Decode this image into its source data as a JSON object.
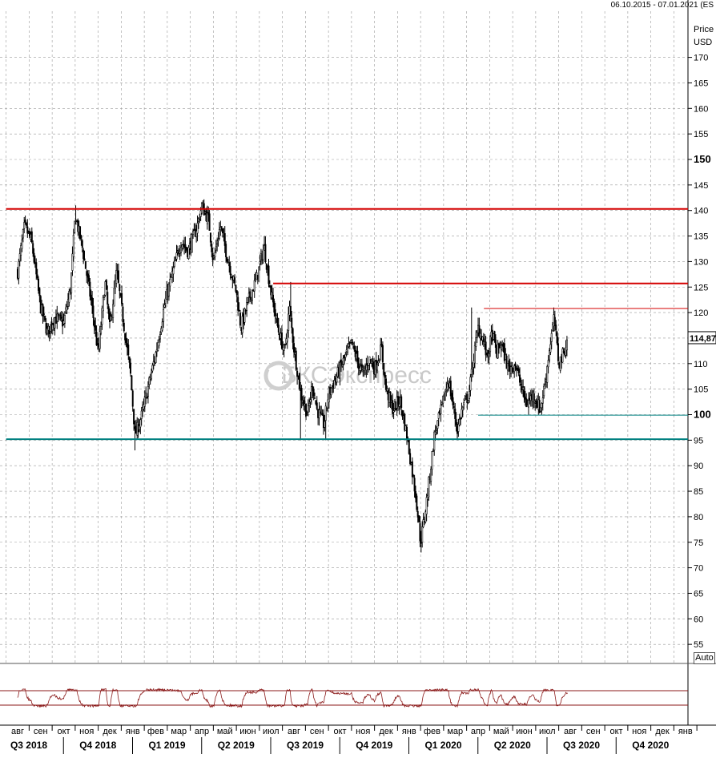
{
  "header": {
    "date_range": "06.10.2015 - 07.01.2021 (ES"
  },
  "axis": {
    "price_label": "Price",
    "currency_label": "USD"
  },
  "watermark": "БКСЭкспресс",
  "controls": {
    "auto_label": "Auto"
  },
  "colors": {
    "resistance": "#d40000",
    "support": "#008080",
    "candle": "#000000",
    "oscillator": "#8b1a1a",
    "grid": "#999999"
  },
  "chart_data": {
    "type": "candlestick",
    "ylim": [
      51,
      180
    ],
    "y_ticks": [
      55,
      60,
      65,
      70,
      75,
      80,
      85,
      90,
      95,
      100,
      105,
      110,
      115,
      120,
      125,
      130,
      135,
      140,
      145,
      150,
      155,
      160,
      165,
      170
    ],
    "bold_ticks": [
      100,
      150
    ],
    "last_price": "114,87",
    "months": [
      "авг",
      "сен",
      "окт",
      "ноя",
      "дек",
      "янв",
      "фев",
      "мар",
      "апр",
      "май",
      "июн",
      "июл",
      "авг",
      "сен",
      "окт",
      "ноя",
      "дек",
      "янв",
      "фев",
      "мар",
      "апр",
      "май",
      "июн",
      "июл",
      "авг",
      "сен",
      "окт",
      "ноя",
      "дек",
      "янв"
    ],
    "quarters": [
      "Q3 2018",
      "Q4 2018",
      "Q1 2019",
      "Q2 2019",
      "Q3 2019",
      "Q4 2019",
      "Q1 2020",
      "Q2 2020",
      "Q3 2020",
      "Q4 2020"
    ],
    "close_path": [
      {
        "t": 0.0,
        "v": 128
      },
      {
        "t": 0.3,
        "v": 137
      },
      {
        "t": 0.6,
        "v": 134
      },
      {
        "t": 1.0,
        "v": 121
      },
      {
        "t": 1.3,
        "v": 116
      },
      {
        "t": 1.6,
        "v": 119
      },
      {
        "t": 2.0,
        "v": 118
      },
      {
        "t": 2.3,
        "v": 125
      },
      {
        "t": 2.5,
        "v": 139
      },
      {
        "t": 2.8,
        "v": 133
      },
      {
        "t": 3.2,
        "v": 122
      },
      {
        "t": 3.5,
        "v": 112
      },
      {
        "t": 3.8,
        "v": 126
      },
      {
        "t": 4.0,
        "v": 117
      },
      {
        "t": 4.3,
        "v": 128
      },
      {
        "t": 4.6,
        "v": 118
      },
      {
        "t": 4.9,
        "v": 108
      },
      {
        "t": 5.1,
        "v": 96
      },
      {
        "t": 5.4,
        "v": 100
      },
      {
        "t": 5.7,
        "v": 106
      },
      {
        "t": 6.0,
        "v": 112
      },
      {
        "t": 6.4,
        "v": 122
      },
      {
        "t": 6.8,
        "v": 129
      },
      {
        "t": 7.1,
        "v": 134
      },
      {
        "t": 7.4,
        "v": 132
      },
      {
        "t": 7.8,
        "v": 137
      },
      {
        "t": 8.0,
        "v": 141
      },
      {
        "t": 8.3,
        "v": 138
      },
      {
        "t": 8.5,
        "v": 130
      },
      {
        "t": 8.8,
        "v": 137
      },
      {
        "t": 9.1,
        "v": 131
      },
      {
        "t": 9.5,
        "v": 124
      },
      {
        "t": 9.7,
        "v": 117
      },
      {
        "t": 10.0,
        "v": 122
      },
      {
        "t": 10.4,
        "v": 127
      },
      {
        "t": 10.7,
        "v": 133
      },
      {
        "t": 11.0,
        "v": 124
      },
      {
        "t": 11.3,
        "v": 117
      },
      {
        "t": 11.6,
        "v": 112
      },
      {
        "t": 11.8,
        "v": 121
      },
      {
        "t": 12.0,
        "v": 113
      },
      {
        "t": 12.3,
        "v": 104
      },
      {
        "t": 12.6,
        "v": 100
      },
      {
        "t": 12.8,
        "v": 106
      },
      {
        "t": 13.0,
        "v": 101
      },
      {
        "t": 13.3,
        "v": 98
      },
      {
        "t": 13.5,
        "v": 104
      },
      {
        "t": 13.8,
        "v": 107
      },
      {
        "t": 14.1,
        "v": 110
      },
      {
        "t": 14.5,
        "v": 114
      },
      {
        "t": 14.8,
        "v": 110
      },
      {
        "t": 15.0,
        "v": 108
      },
      {
        "t": 15.3,
        "v": 111
      },
      {
        "t": 15.5,
        "v": 109
      },
      {
        "t": 15.8,
        "v": 113
      },
      {
        "t": 16.0,
        "v": 105
      },
      {
        "t": 16.3,
        "v": 101
      },
      {
        "t": 16.6,
        "v": 103
      },
      {
        "t": 16.9,
        "v": 96
      },
      {
        "t": 17.1,
        "v": 90
      },
      {
        "t": 17.3,
        "v": 84
      },
      {
        "t": 17.5,
        "v": 75
      },
      {
        "t": 17.7,
        "v": 81
      },
      {
        "t": 17.9,
        "v": 88
      },
      {
        "t": 18.1,
        "v": 96
      },
      {
        "t": 18.4,
        "v": 101
      },
      {
        "t": 18.7,
        "v": 107
      },
      {
        "t": 18.9,
        "v": 102
      },
      {
        "t": 19.1,
        "v": 97
      },
      {
        "t": 19.3,
        "v": 101
      },
      {
        "t": 19.6,
        "v": 104
      },
      {
        "t": 19.8,
        "v": 111
      },
      {
        "t": 20.0,
        "v": 117
      },
      {
        "t": 20.2,
        "v": 115
      },
      {
        "t": 20.4,
        "v": 111
      },
      {
        "t": 20.6,
        "v": 116
      },
      {
        "t": 20.8,
        "v": 112
      },
      {
        "t": 21.0,
        "v": 114
      },
      {
        "t": 21.3,
        "v": 109
      },
      {
        "t": 21.6,
        "v": 110
      },
      {
        "t": 21.9,
        "v": 105
      },
      {
        "t": 22.1,
        "v": 102
      },
      {
        "t": 22.4,
        "v": 104
      },
      {
        "t": 22.7,
        "v": 101
      },
      {
        "t": 22.9,
        "v": 106
      },
      {
        "t": 23.1,
        "v": 113
      },
      {
        "t": 23.3,
        "v": 119
      },
      {
        "t": 23.5,
        "v": 110
      },
      {
        "t": 23.7,
        "v": 112
      },
      {
        "t": 23.9,
        "v": 115
      }
    ],
    "swing_highs": [
      {
        "t": 0.35,
        "v": 139
      },
      {
        "t": 2.5,
        "v": 141
      },
      {
        "t": 8.05,
        "v": 142
      },
      {
        "t": 10.7,
        "v": 135
      },
      {
        "t": 11.85,
        "v": 126
      },
      {
        "t": 19.7,
        "v": 121
      },
      {
        "t": 23.3,
        "v": 121
      }
    ],
    "swing_lows": [
      {
        "t": 5.1,
        "v": 93
      },
      {
        "t": 12.3,
        "v": 95
      },
      {
        "t": 13.4,
        "v": 95
      },
      {
        "t": 17.5,
        "v": 73
      },
      {
        "t": 19.1,
        "v": 95
      },
      {
        "t": 22.6,
        "v": 100
      }
    ],
    "levels": [
      {
        "value": 140.3,
        "t_start": -0.5,
        "kind": "resistance",
        "width": 2
      },
      {
        "value": 125.7,
        "t_start": 11.1,
        "kind": "resistance",
        "width": 2
      },
      {
        "value": 120.8,
        "t_start": 20.25,
        "kind": "resistance",
        "width": 1
      },
      {
        "value": 95.2,
        "t_start": -0.5,
        "kind": "support",
        "width": 2
      },
      {
        "value": 99.9,
        "t_start": 20.0,
        "kind": "support",
        "width": 1
      }
    ]
  }
}
